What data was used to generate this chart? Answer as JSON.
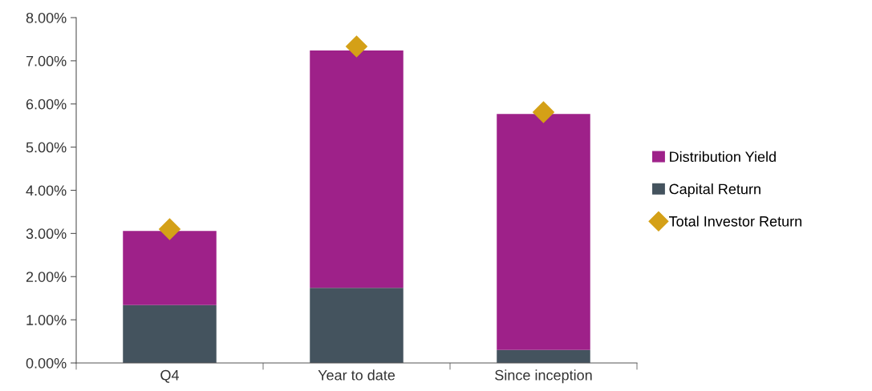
{
  "chart_data": {
    "type": "bar",
    "stacked": true,
    "categories": [
      "Q4",
      "Year to date",
      "Since inception"
    ],
    "series": [
      {
        "name": "Capital Return",
        "color": "#44535e",
        "values": [
          1.34,
          1.74,
          0.3
        ]
      },
      {
        "name": "Distribution Yield",
        "color": "#9e2189",
        "values": [
          1.72,
          5.5,
          5.47
        ]
      },
      {
        "name": "Total Investor Return",
        "type": "scatter",
        "color": "#d4a017",
        "x": [
          "Q4",
          "Year to date",
          "Since inception"
        ],
        "values": [
          3.1,
          7.33,
          5.81
        ]
      }
    ],
    "ylim": [
      0,
      8
    ],
    "yticks": [
      {
        "value": 0,
        "label": "0.00%"
      },
      {
        "value": 1,
        "label": "1.00%"
      },
      {
        "value": 2,
        "label": "2.00%"
      },
      {
        "value": 3,
        "label": "3.00%"
      },
      {
        "value": 4,
        "label": "4.00%"
      },
      {
        "value": 5,
        "label": "5.00%"
      },
      {
        "value": 6,
        "label": "6.00%"
      },
      {
        "value": 7,
        "label": "7.00%"
      },
      {
        "value": 8,
        "label": "8.00%"
      }
    ],
    "marker": "diamond",
    "grid": false,
    "legend": "right"
  }
}
